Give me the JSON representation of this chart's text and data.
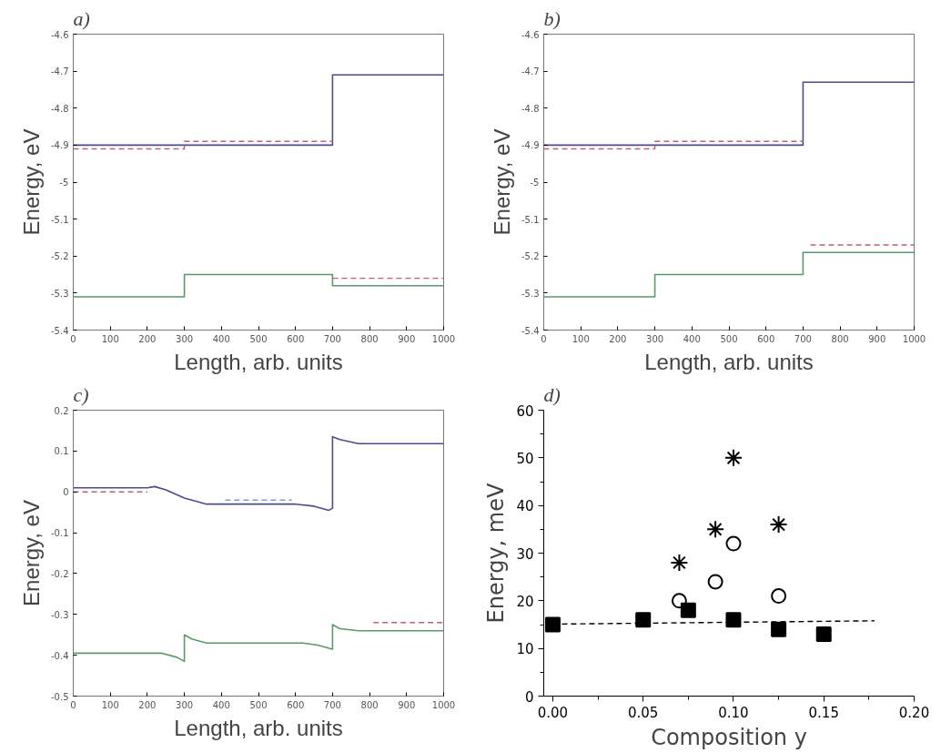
{
  "chart_data": [
    {
      "type": "line",
      "title": "a)",
      "xlabel": "Length, arb. units",
      "ylabel": "Energy, eV",
      "xlim": [
        0,
        1000
      ],
      "ylim": [
        -5.4,
        -4.6
      ],
      "xticks": [
        0,
        100,
        200,
        300,
        400,
        500,
        600,
        700,
        800,
        900,
        1000
      ],
      "yticks": [
        -5.4,
        -5.3,
        -5.2,
        -5.1,
        -5,
        -4.9,
        -4.8,
        -4.7,
        -4.6
      ],
      "grid": false,
      "series": [
        {
          "color": "#4b4b8f",
          "line_style": "solid",
          "x": [
            0,
            700,
            700,
            1000
          ],
          "values": [
            -4.9,
            -4.9,
            -4.71,
            -4.71
          ]
        },
        {
          "color": "#c06070",
          "line_style": "dashed",
          "x": [
            0,
            300,
            300,
            700
          ],
          "values": [
            -4.91,
            -4.91,
            -4.89,
            -4.89
          ]
        },
        {
          "color": "#5a9a6a",
          "line_style": "solid",
          "x": [
            0,
            300,
            300,
            700,
            700,
            1000
          ],
          "values": [
            -5.31,
            -5.31,
            -5.25,
            -5.25,
            -5.28,
            -5.28
          ]
        },
        {
          "color": "#c06070",
          "line_style": "dashed",
          "x": [
            700,
            1000
          ],
          "values": [
            -5.26,
            -5.26
          ]
        }
      ]
    },
    {
      "type": "line",
      "title": "b)",
      "xlabel": "Length, arb. units",
      "ylabel": "Energy, eV",
      "xlim": [
        0,
        1000
      ],
      "ylim": [
        -5.4,
        -4.6
      ],
      "xticks": [
        0,
        100,
        200,
        300,
        400,
        500,
        600,
        700,
        800,
        900,
        1000
      ],
      "yticks": [
        -5.4,
        -5.3,
        -5.2,
        -5.1,
        -5,
        -4.9,
        -4.8,
        -4.7,
        -4.6
      ],
      "grid": false,
      "series": [
        {
          "color": "#4b4b8f",
          "line_style": "solid",
          "x": [
            0,
            700,
            700,
            1000
          ],
          "values": [
            -4.9,
            -4.9,
            -4.73,
            -4.73
          ]
        },
        {
          "color": "#c06070",
          "line_style": "dashed",
          "x": [
            0,
            300,
            300,
            700
          ],
          "values": [
            -4.91,
            -4.91,
            -4.89,
            -4.89
          ]
        },
        {
          "color": "#5a9a6a",
          "line_style": "solid",
          "x": [
            0,
            300,
            300,
            700,
            700,
            1000
          ],
          "values": [
            -5.31,
            -5.31,
            -5.25,
            -5.25,
            -5.19,
            -5.19
          ]
        },
        {
          "color": "#c06070",
          "line_style": "dashed",
          "x": [
            720,
            1000
          ],
          "values": [
            -5.17,
            -5.17
          ]
        }
      ]
    },
    {
      "type": "line",
      "title": "c)",
      "xlabel": "Length, arb. units",
      "ylabel": "Energy, eV",
      "xlim": [
        0,
        1000
      ],
      "ylim": [
        -0.5,
        0.2
      ],
      "xticks": [
        0,
        100,
        200,
        300,
        400,
        500,
        600,
        700,
        800,
        900,
        1000
      ],
      "yticks": [
        -0.5,
        -0.4,
        -0.3,
        -0.2,
        -0.1,
        0,
        0.1,
        0.2
      ],
      "grid": false,
      "series": [
        {
          "color": "#4b4b8f",
          "line_style": "solid",
          "x": [
            0,
            200,
            220,
            250,
            300,
            360,
            400,
            600,
            650,
            690,
            700,
            700,
            720,
            770,
            1000
          ],
          "values": [
            0.01,
            0.01,
            0.013,
            0.005,
            -0.015,
            -0.03,
            -0.03,
            -0.03,
            -0.035,
            -0.045,
            -0.04,
            0.135,
            0.128,
            0.118,
            0.118
          ]
        },
        {
          "color": "#c06070",
          "line_style": "dashed",
          "x": [
            0,
            200
          ],
          "values": [
            0,
            0
          ]
        },
        {
          "color": "#7aa0d0",
          "line_style": "dashed",
          "x": [
            410,
            590
          ],
          "values": [
            -0.02,
            -0.02
          ]
        },
        {
          "color": "#5a9a6a",
          "line_style": "solid",
          "x": [
            0,
            240,
            280,
            300,
            300,
            320,
            360,
            400,
            620,
            660,
            700,
            700,
            720,
            770,
            1000
          ],
          "values": [
            -0.395,
            -0.395,
            -0.405,
            -0.415,
            -0.35,
            -0.36,
            -0.37,
            -0.37,
            -0.37,
            -0.375,
            -0.385,
            -0.325,
            -0.335,
            -0.34,
            -0.34
          ]
        },
        {
          "color": "#c06070",
          "line_style": "dashed",
          "x": [
            810,
            1000
          ],
          "values": [
            -0.32,
            -0.32
          ]
        }
      ]
    },
    {
      "type": "scatter",
      "title": "d)",
      "xlabel": "Composition y",
      "ylabel": "Energy, meV",
      "xlim": [
        -0.005,
        0.2
      ],
      "ylim": [
        0,
        60
      ],
      "xticks": [
        {
          "value": 0,
          "label": "0.00"
        },
        {
          "value": 0.05,
          "label": "0.05"
        },
        {
          "value": 0.1,
          "label": "0.10"
        },
        {
          "value": 0.15,
          "label": "0.15"
        },
        {
          "value": 0.2,
          "label": "0.20"
        }
      ],
      "yticks": [
        0,
        10,
        20,
        30,
        40,
        50,
        60
      ],
      "grid": false,
      "series": [
        {
          "type": "line",
          "color": "#000000",
          "line_style": "dashed",
          "marker": "none",
          "x": [
            0,
            0.178
          ],
          "values": [
            15.1,
            15.8
          ]
        },
        {
          "color": "#000000",
          "marker": "square",
          "x": [
            0,
            0.05,
            0.075,
            0.1,
            0.125,
            0.15
          ],
          "values": [
            15,
            16,
            18,
            16,
            14,
            13
          ]
        },
        {
          "color": "#000000",
          "marker": "circle",
          "x": [
            0.07,
            0.09,
            0.1,
            0.125
          ],
          "values": [
            20,
            24,
            32,
            21
          ]
        },
        {
          "color": "#000000",
          "marker": "cross",
          "x": [
            0.07,
            0.09,
            0.1,
            0.125
          ],
          "values": [
            28,
            35,
            50,
            36
          ]
        }
      ]
    }
  ]
}
